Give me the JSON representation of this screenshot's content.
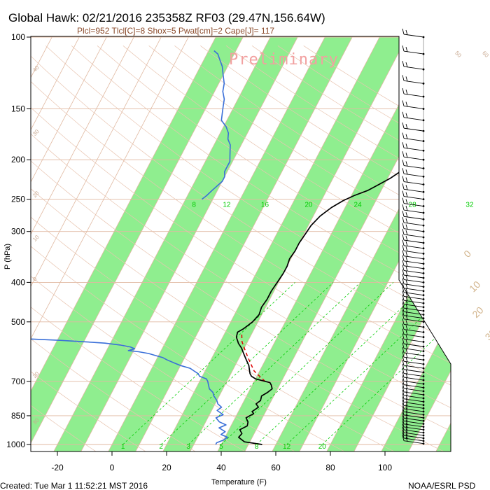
{
  "title": "Global Hawk: 02/21/2016 235358Z RF03 (29.47N,156.64W)",
  "subtitle": "Plcl=952 Tlcl[C]=8 Shox=5 Pwat[cm]=2 Cape[J]= 117",
  "watermark": "Preliminary",
  "footer_left": "Created: Tue Mar  1 11:52:21 MST 2016",
  "footer_right": "NOAA/ESRL PSD",
  "colors": {
    "green_band": "#8fee8f",
    "temperature": "#000000",
    "dewpoint": "#3a6fd8",
    "parcel": "#dd0000",
    "isotherm": "#e0b8a0",
    "mixing_ratio": "#00cc00"
  },
  "chart_data": {
    "type": "line",
    "chart_kind": "skew-T log-p sounding",
    "xlabel": "Temperature (F)",
    "ylabel": "P (hPa)",
    "x_ticks": [
      "-20",
      "0",
      "20",
      "40",
      "60",
      "80",
      "100"
    ],
    "x_tick_values": [
      -20,
      0,
      20,
      40,
      60,
      80,
      100
    ],
    "y_ticks": [
      "100",
      "150",
      "200",
      "250",
      "300",
      "400",
      "500",
      "700",
      "850",
      "1000"
    ],
    "y_tick_values": [
      100,
      150,
      200,
      250,
      300,
      400,
      500,
      700,
      850,
      1000
    ],
    "y_scale": "log",
    "xlim": [
      -28,
      110
    ],
    "ylim": [
      1050,
      100
    ],
    "skew_F_per_decade": 78,
    "isotherm_band_start_F": -40,
    "isotherm_band_width_F": 10,
    "isotherm_labels": [
      "50",
      "60",
      "70",
      "80",
      "90",
      "100",
      "110",
      "120",
      "130",
      "140",
      "150",
      "160"
    ],
    "isotherm_label_values": [
      50,
      60,
      70,
      80,
      90,
      100,
      110,
      120,
      130,
      140,
      150,
      160
    ],
    "mixing_ratio_labels": [
      "8",
      "12",
      "16",
      "20",
      "24",
      "28",
      "32"
    ],
    "mixing_ratio_label_positions_F": [
      -16,
      -4,
      10,
      26,
      44,
      64,
      85
    ],
    "mixing_ratio_label_p": 257,
    "mixing_ratio_lower_labels": [
      "1",
      "2",
      "3",
      "5",
      "8",
      "12",
      "20"
    ],
    "mixing_ratio_lower_positions_F": [
      4,
      18,
      28,
      40,
      53,
      64,
      77
    ],
    "theta_labels_right": [
      "30",
      "20",
      "10",
      "0",
      "10",
      "20",
      "30"
    ],
    "theta_label_positions": [
      [
        101,
        118
      ],
      [
        100,
        190
      ],
      [
        98,
        262
      ],
      [
        95,
        345
      ],
      [
        104,
        415
      ],
      [
        110,
        480
      ],
      [
        119,
        545
      ]
    ],
    "theta_labels_left": [
      "40",
      "30",
      "20",
      "10",
      "0",
      "20",
      "30"
    ],
    "theta_left_positions": [
      [
        -27,
        122
      ],
      [
        -26,
        175
      ],
      [
        -26,
        248
      ],
      [
        -26,
        318
      ],
      [
        -27,
        398
      ],
      [
        -26,
        688
      ],
      [
        -26,
        895
      ]
    ],
    "series": [
      {
        "name": "Temperature",
        "points": [
          [
            55,
            1000
          ],
          [
            48,
            985
          ],
          [
            45,
            960
          ],
          [
            45.5,
            940
          ],
          [
            44,
            920
          ],
          [
            46,
            900
          ],
          [
            45.5,
            880
          ],
          [
            44,
            860
          ],
          [
            46,
            840
          ],
          [
            45,
            830
          ],
          [
            46.5,
            810
          ],
          [
            45,
            795
          ],
          [
            46,
            780
          ],
          [
            45.5,
            760
          ],
          [
            47,
            745
          ],
          [
            48,
            730
          ],
          [
            47,
            715
          ],
          [
            46,
            705
          ],
          [
            44,
            700
          ],
          [
            40,
            690
          ],
          [
            38,
            680
          ],
          [
            37,
            670
          ],
          [
            36,
            655
          ],
          [
            35,
            640
          ],
          [
            33,
            620
          ],
          [
            31,
            600
          ],
          [
            29,
            580
          ],
          [
            27,
            565
          ],
          [
            26,
            555
          ],
          [
            25,
            545
          ],
          [
            24.5,
            530
          ],
          [
            26,
            520
          ],
          [
            27,
            510
          ],
          [
            28,
            500
          ],
          [
            29,
            480
          ],
          [
            28.5,
            460
          ],
          [
            29,
            440
          ],
          [
            29,
            420
          ],
          [
            29.5,
            400
          ],
          [
            30,
            380
          ],
          [
            30,
            365
          ],
          [
            29.5,
            350
          ],
          [
            30,
            335
          ],
          [
            30,
            320
          ],
          [
            30.5,
            305
          ],
          [
            31,
            290
          ],
          [
            32.5,
            275
          ],
          [
            35,
            262
          ],
          [
            38,
            252
          ],
          [
            41,
            245
          ],
          [
            45,
            238
          ],
          [
            48,
            230
          ],
          [
            51,
            222
          ],
          [
            53,
            215
          ],
          [
            53,
            205
          ],
          [
            52,
            195
          ],
          [
            51,
            187
          ],
          [
            49,
            180
          ],
          [
            48,
            172
          ],
          [
            47,
            165
          ],
          [
            45,
            158
          ],
          [
            43,
            152
          ],
          [
            41.5,
            146
          ],
          [
            40,
            140
          ],
          [
            39,
            134
          ],
          [
            38,
            128
          ],
          [
            37.5,
            122
          ],
          [
            37,
            116
          ],
          [
            37,
            111
          ],
          [
            38,
            106
          ],
          [
            40,
            102
          ],
          [
            42,
            100
          ]
        ]
      },
      {
        "name": "Dewpoint",
        "points": [
          [
            38,
            1000
          ],
          [
            38,
            990
          ],
          [
            40,
            975
          ],
          [
            41,
            960
          ],
          [
            38,
            945
          ],
          [
            39,
            930
          ],
          [
            36,
            910
          ],
          [
            38,
            895
          ],
          [
            35,
            880
          ],
          [
            33,
            860
          ],
          [
            35,
            845
          ],
          [
            32,
            825
          ],
          [
            33,
            810
          ],
          [
            31,
            795
          ],
          [
            30,
            780
          ],
          [
            28,
            760
          ],
          [
            27,
            745
          ],
          [
            25,
            730
          ],
          [
            24,
            715
          ],
          [
            23,
            700
          ],
          [
            22,
            690
          ],
          [
            19,
            680
          ],
          [
            18,
            670
          ],
          [
            16,
            660
          ],
          [
            14,
            650
          ],
          [
            10,
            640
          ],
          [
            7,
            630
          ],
          [
            4,
            620
          ],
          [
            2,
            612
          ],
          [
            -1,
            605
          ],
          [
            -4,
            598
          ],
          [
            -8,
            592
          ],
          [
            -12,
            588
          ],
          [
            -10,
            582
          ],
          [
            -12,
            576
          ],
          [
            -16,
            570
          ],
          [
            -22,
            564
          ],
          [
            -29,
            560
          ],
          [
            -39,
            555
          ],
          [
            -52,
            550
          ],
          [
            -62,
            545
          ],
          [
            -73,
            540
          ],
          [
            -82,
            536
          ],
          [
            -90,
            533
          ]
        ],
        "upper_points": [
          [
            -14,
            250
          ],
          [
            -13,
            245
          ],
          [
            -12,
            238
          ],
          [
            -11,
            232
          ],
          [
            -10,
            226
          ],
          [
            -10,
            220
          ],
          [
            -11,
            214
          ],
          [
            -11,
            208
          ],
          [
            -11,
            202
          ],
          [
            -12,
            196
          ],
          [
            -13,
            190
          ],
          [
            -14,
            184
          ],
          [
            -16,
            178
          ],
          [
            -17,
            172
          ],
          [
            -19,
            166
          ],
          [
            -22,
            160
          ],
          [
            -23,
            154
          ],
          [
            -24,
            148
          ],
          [
            -25,
            142
          ],
          [
            -27,
            136
          ],
          [
            -28,
            130
          ],
          [
            -30,
            124
          ],
          [
            -32,
            118
          ],
          [
            -34,
            114
          ],
          [
            -36,
            110
          ],
          [
            -38,
            108
          ]
        ]
      },
      {
        "name": "Parcel",
        "points": [
          [
            44,
            700
          ],
          [
            41,
            680
          ],
          [
            38,
            660
          ],
          [
            36,
            640
          ],
          [
            34,
            620
          ],
          [
            32,
            600
          ],
          [
            30,
            580
          ],
          [
            28,
            560
          ],
          [
            27,
            545
          ],
          [
            26,
            530
          ]
        ]
      }
    ],
    "wind_barbs_pressures": [
      100,
      110,
      120,
      130,
      140,
      150,
      160,
      170,
      180,
      190,
      200,
      210,
      220,
      230,
      240,
      250,
      260,
      270,
      280,
      290,
      300,
      310,
      320,
      330,
      340,
      350,
      360,
      370,
      380,
      390,
      400,
      410,
      420,
      430,
      440,
      450,
      460,
      470,
      480,
      490,
      500,
      515,
      530,
      545,
      560,
      575,
      590,
      605,
      620,
      635,
      650,
      665,
      680,
      695,
      710,
      725,
      740,
      755,
      770,
      785,
      800,
      815,
      830,
      845,
      860,
      875,
      890,
      905,
      920,
      935,
      950,
      965,
      980,
      995
    ]
  }
}
